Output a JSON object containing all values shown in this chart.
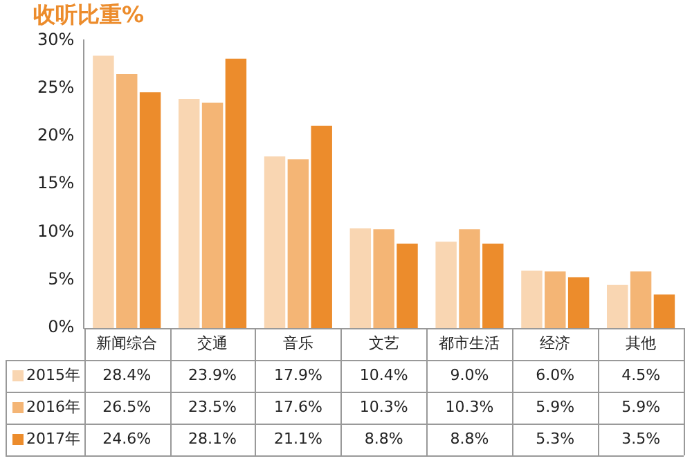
{
  "chart_data": {
    "type": "bar",
    "title": "收听比重%",
    "categories": [
      "新闻综合",
      "交通",
      "音乐",
      "文艺",
      "都市生活",
      "经济",
      "其他"
    ],
    "series": [
      {
        "name": "2015年",
        "color": "#f9d6b2",
        "values": [
          28.4,
          23.9,
          17.9,
          10.4,
          9.0,
          6.0,
          4.5
        ],
        "value_labels": [
          "28.4%",
          "23.9%",
          "17.9%",
          "10.4%",
          "9.0%",
          "6.0%",
          "4.5%"
        ]
      },
      {
        "name": "2016年",
        "color": "#f4b575",
        "values": [
          26.5,
          23.5,
          17.6,
          10.3,
          10.3,
          5.9,
          5.9
        ],
        "value_labels": [
          "26.5%",
          "23.5%",
          "17.6%",
          "10.3%",
          "10.3%",
          "5.9%",
          "5.9%"
        ]
      },
      {
        "name": "2017年",
        "color": "#ec8c2c",
        "values": [
          24.6,
          28.1,
          21.1,
          8.8,
          8.8,
          5.3,
          3.5
        ],
        "value_labels": [
          "24.6%",
          "28.1%",
          "21.1%",
          "8.8%",
          "8.8%",
          "5.3%",
          "3.5%"
        ]
      }
    ],
    "ylim": [
      0,
      30
    ],
    "yticks": [
      {
        "value": 0,
        "label": "0%"
      },
      {
        "value": 5,
        "label": "5%"
      },
      {
        "value": 10,
        "label": "10%"
      },
      {
        "value": 15,
        "label": "15%"
      },
      {
        "value": 20,
        "label": "20%"
      },
      {
        "value": 25,
        "label": "25%"
      },
      {
        "value": 30,
        "label": "30%"
      }
    ],
    "grid": false,
    "legend": "bottom left"
  }
}
